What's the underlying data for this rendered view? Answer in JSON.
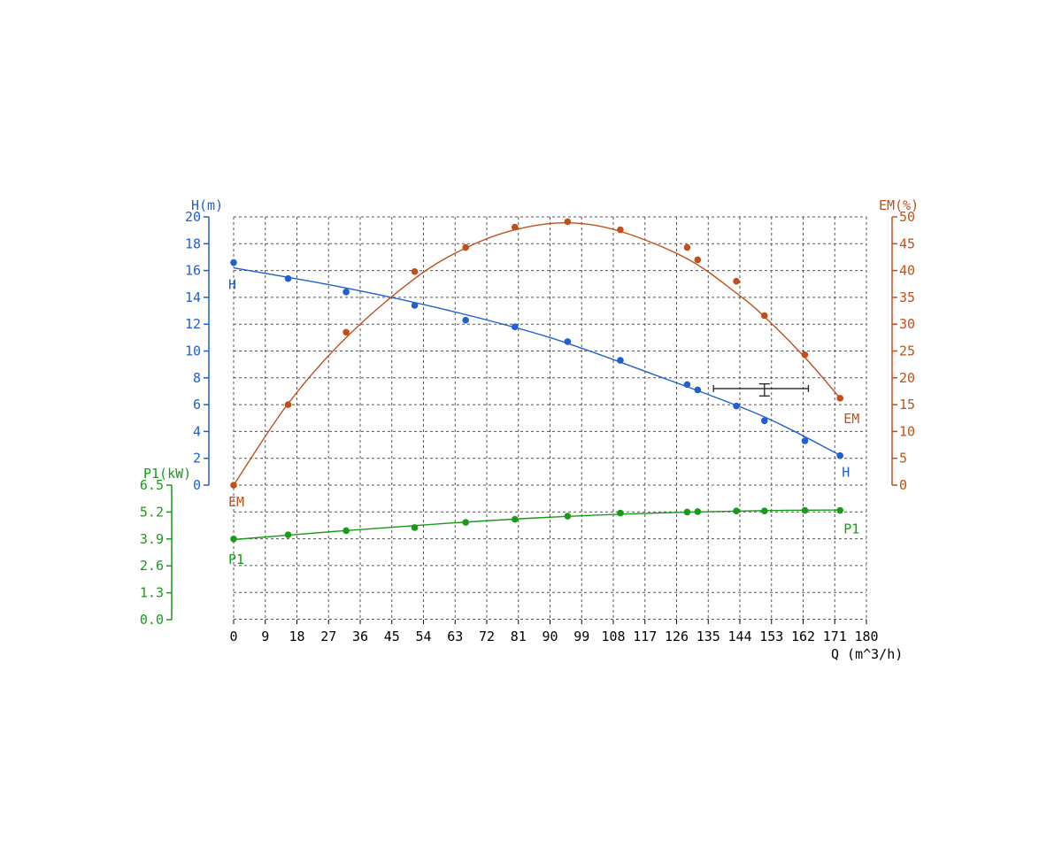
{
  "chart_data": {
    "type": "scatter",
    "x_axis": {
      "label": "Q (m^3/h)",
      "range": [
        0,
        180
      ],
      "ticks": [
        0,
        9,
        18,
        27,
        36,
        45,
        54,
        63,
        72,
        81,
        90,
        99,
        108,
        117,
        126,
        135,
        144,
        153,
        162,
        171,
        180
      ]
    },
    "axes": {
      "H": {
        "label": "H(m)",
        "side": "left",
        "color": "#1f5fd0",
        "range": [
          0,
          20
        ],
        "ticks": [
          "0",
          "2",
          "4",
          "6",
          "8",
          "10",
          "12",
          "14",
          "16",
          "18",
          "20"
        ]
      },
      "EM": {
        "label": "EM(%)",
        "side": "right",
        "color": "#c0501a",
        "range": [
          0,
          50
        ],
        "ticks": [
          "0",
          "5",
          "10",
          "15",
          "20",
          "25",
          "30",
          "35",
          "40",
          "45",
          "50"
        ]
      },
      "P1": {
        "label": "P1(kW)",
        "side": "left",
        "color": "#1a9a1a",
        "range": [
          0,
          6.5
        ],
        "ticks": [
          "0.0",
          "1.3",
          "2.6",
          "3.9",
          "5.2",
          "6.5"
        ]
      }
    },
    "series": [
      {
        "name": "H",
        "axis": "H",
        "color": "#1f5fd0",
        "start_label": "H",
        "end_label": "H",
        "points": [
          [
            0,
            16.6
          ],
          [
            15.5,
            15.4
          ],
          [
            32,
            14.4
          ],
          [
            51.5,
            13.4
          ],
          [
            66,
            12.3
          ],
          [
            80,
            11.8
          ],
          [
            95,
            10.7
          ],
          [
            110,
            9.3
          ],
          [
            129,
            7.5
          ],
          [
            132,
            7.1
          ],
          [
            143,
            5.9
          ],
          [
            151,
            4.8
          ],
          [
            162.5,
            3.3
          ],
          [
            172.5,
            2.2
          ]
        ],
        "fit": [
          [
            0,
            16.2
          ],
          [
            30,
            14.8
          ],
          [
            60,
            13.1
          ],
          [
            90,
            11.0
          ],
          [
            120,
            8.2
          ],
          [
            150,
            5.2
          ],
          [
            172,
            2.3
          ]
        ]
      },
      {
        "name": "EM",
        "axis": "EM",
        "color": "#c0501a",
        "start_label": "EM",
        "end_label": "EM",
        "points": [
          [
            0,
            0
          ],
          [
            15.5,
            15
          ],
          [
            32,
            28.5
          ],
          [
            51.5,
            39.8
          ],
          [
            66,
            44.3
          ],
          [
            80,
            48.1
          ],
          [
            95,
            49.1
          ],
          [
            110,
            47.6
          ],
          [
            129,
            44.3
          ],
          [
            132,
            42
          ],
          [
            143,
            38
          ],
          [
            151,
            31.6
          ],
          [
            162.5,
            24.3
          ],
          [
            172.5,
            16.2
          ]
        ],
        "fit": [
          [
            0,
            0
          ],
          [
            15.5,
            15.2
          ],
          [
            32,
            27.5
          ],
          [
            51.5,
            38.5
          ],
          [
            66,
            44.2
          ],
          [
            80,
            47.6
          ],
          [
            95,
            48.9
          ],
          [
            110,
            47.3
          ],
          [
            129,
            42.2
          ],
          [
            143,
            35.8
          ],
          [
            151,
            31.4
          ],
          [
            162.5,
            23.8
          ],
          [
            172.5,
            16.2
          ]
        ]
      },
      {
        "name": "P1",
        "axis": "P1",
        "color": "#1a9a1a",
        "start_label": "P1",
        "end_label": "P1",
        "points": [
          [
            0,
            3.9
          ],
          [
            15.5,
            4.1
          ],
          [
            32,
            4.3
          ],
          [
            51.5,
            4.45
          ],
          [
            66,
            4.7
          ],
          [
            80,
            4.85
          ],
          [
            95,
            5.0
          ],
          [
            110,
            5.15
          ],
          [
            129,
            5.2
          ],
          [
            132,
            5.22
          ],
          [
            143,
            5.25
          ],
          [
            151,
            5.25
          ],
          [
            162.5,
            5.28
          ],
          [
            172.5,
            5.28
          ]
        ],
        "fit": [
          [
            0,
            3.87
          ],
          [
            30,
            4.28
          ],
          [
            60,
            4.65
          ],
          [
            90,
            4.95
          ],
          [
            120,
            5.15
          ],
          [
            150,
            5.27
          ],
          [
            172.5,
            5.3
          ]
        ]
      }
    ],
    "error_bar": {
      "center": [
        151,
        7.2
      ],
      "x_range": [
        136.5,
        163.5
      ],
      "y_range": [
        6.65,
        7.55
      ],
      "axis": "H",
      "color": "#222222"
    },
    "grid": true
  }
}
